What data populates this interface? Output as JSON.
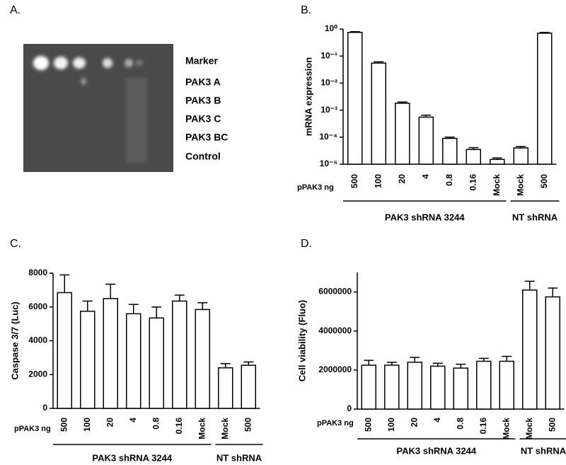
{
  "gel": {
    "panel": "A.",
    "lanes": [
      "Marker",
      "PAK3 A",
      "PAK3 B",
      "PAK3 C",
      "PAK3 BC",
      "Control"
    ]
  },
  "chart_data": [
    {
      "type": "bar",
      "panel": "B.",
      "ylabel": "mRNA expression",
      "xlabel": "pPAK3 ng",
      "log_scale": true,
      "categories": [
        "500",
        "100",
        "20",
        "4",
        "0.8",
        "0.16",
        "Mock",
        "Mock",
        "500"
      ],
      "values": [
        0.75,
        0.055,
        0.0018,
        0.00055,
        9e-05,
        3.5e-05,
        1.5e-05,
        4e-05,
        0.7
      ],
      "errors": [
        0.05,
        0.006,
        0.0002,
        0.0001,
        1e-05,
        6e-06,
        2e-06,
        5e-06,
        0.05
      ],
      "groups": [
        "PAK3 shRNA 3244",
        "NT shRNA"
      ],
      "color": "#ffffff",
      "edge_color": "#000000",
      "ylim": [
        1e-05,
        1
      ],
      "yticks": [
        {
          "value": 1e-05,
          "label": "10⁻⁵"
        },
        {
          "value": 0.0001,
          "label": "10⁻⁴"
        },
        {
          "value": 0.001,
          "label": "10⁻³"
        },
        {
          "value": 0.01,
          "label": "10⁻²"
        },
        {
          "value": 0.1,
          "label": "10⁻¹"
        },
        {
          "value": 1,
          "label": "10⁰"
        }
      ]
    },
    {
      "type": "bar",
      "panel": "C.",
      "ylabel": "Caspase 3/7 (Luc)",
      "xlabel": "pPAK3 ng",
      "log_scale": false,
      "categories": [
        "500",
        "100",
        "20",
        "4",
        "0.8",
        "0.16",
        "Mock",
        "Mock",
        "500"
      ],
      "values": [
        6850,
        5750,
        6500,
        5600,
        5350,
        6350,
        5850,
        2400,
        2550
      ],
      "errors": [
        1050,
        600,
        850,
        550,
        650,
        350,
        400,
        250,
        200
      ],
      "groups": [
        "PAK3 shRNA 3244",
        "NT shRNA"
      ],
      "color": "#ffffff",
      "edge_color": "#000000",
      "ylim": [
        0,
        8000
      ],
      "yticks": [
        0,
        2000,
        4000,
        6000,
        8000
      ]
    },
    {
      "type": "bar",
      "panel": "D.",
      "ylabel": "Cell viability (Fluo)",
      "xlabel": "pPAK3 ng",
      "log_scale": false,
      "categories": [
        "500",
        "100",
        "20",
        "4",
        "0.8",
        "0.16",
        "Mock",
        "Mock",
        "500"
      ],
      "values": [
        2250000,
        2250000,
        2400000,
        2200000,
        2100000,
        2450000,
        2450000,
        6100000,
        5750000
      ],
      "errors": [
        250000,
        150000,
        250000,
        150000,
        200000,
        150000,
        250000,
        450000,
        450000
      ],
      "groups": [
        "PAK3 shRNA 3244",
        "NT shRNA"
      ],
      "color": "#ffffff",
      "edge_color": "#000000",
      "ylim": [
        0,
        7000000
      ],
      "yticks": [
        0,
        2000000,
        4000000,
        6000000
      ]
    }
  ]
}
